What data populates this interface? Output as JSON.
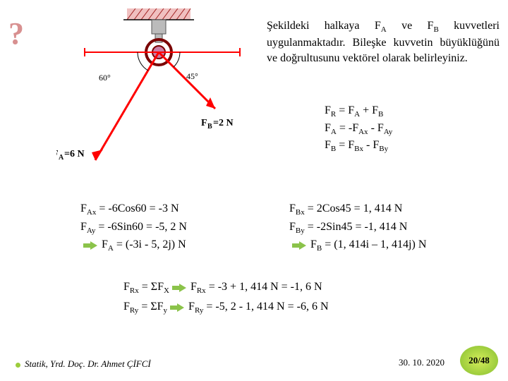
{
  "question_mark": "?",
  "problem_text_parts": {
    "pre": "Şekildeki halkaya ",
    "fa": "F",
    "fa_sub": "A",
    "mid1": " ve ",
    "fb": "F",
    "fb_sub": "B",
    "rest": " kuvvetleri uygulanmaktadır. Bileşke kuvvetin büyüklüğünü ve doğrultusunu vektörel olarak belirleyiniz."
  },
  "diagram": {
    "angle_left": "60°",
    "angle_right": "45°",
    "label_fa": "F",
    "label_fa_sub": "A",
    "label_fa_val": "=6 N",
    "label_fb": "F",
    "label_fb_sub": "B",
    "label_fb_val": "=2 N",
    "colors": {
      "force": "#ff0000",
      "ring_outer": "#7a0000",
      "ring_inner": "#c97fa8",
      "hatch": "#a02020",
      "mount": "#888888",
      "axis": "#bbbbbb"
    }
  },
  "eq1": {
    "l1": "F<sub>R</sub> = F<sub>A</sub> + F<sub>B</sub>",
    "l2": "F<sub>A</sub> = -F<sub>Ax</sub> - F<sub>Ay</sub>",
    "l3": "F<sub>B</sub> = F<sub>Bx</sub> - F<sub>By</sub>"
  },
  "eq2": {
    "l1": "F<sub>Ax</sub> = -6Cos60 = -3 N",
    "l2": "F<sub>Ay</sub> = -6Sin60 = -5, 2 N",
    "l3": "F<sub>A</sub> = (-3i - 5, 2j) N"
  },
  "eq3": {
    "l1": "F<sub>Bx</sub> = 2Cos45 = 1, 414 N",
    "l2": "F<sub>By</sub> = -2Sin45 = -1, 414 N",
    "l3": "F<sub>B</sub> = (1, 414i – 1, 414j) N"
  },
  "eq4": {
    "left1": "F<sub>Rx</sub> = ΣF<sub>X</sub>",
    "right1": "F<sub>Rx</sub> = -3 + 1, 414 N = -1, 6 N",
    "left2": "F<sub>Ry</sub> = ΣF<sub>y</sub>",
    "right2": "F<sub>Ry</sub> = -5, 2 - 1, 414 N = -6, 6 N"
  },
  "footer": {
    "left": "Statik, Yrd. Doç. Dr. Ahmet ÇİFCİ",
    "date": "30. 10. 2020",
    "page": "20/48"
  }
}
